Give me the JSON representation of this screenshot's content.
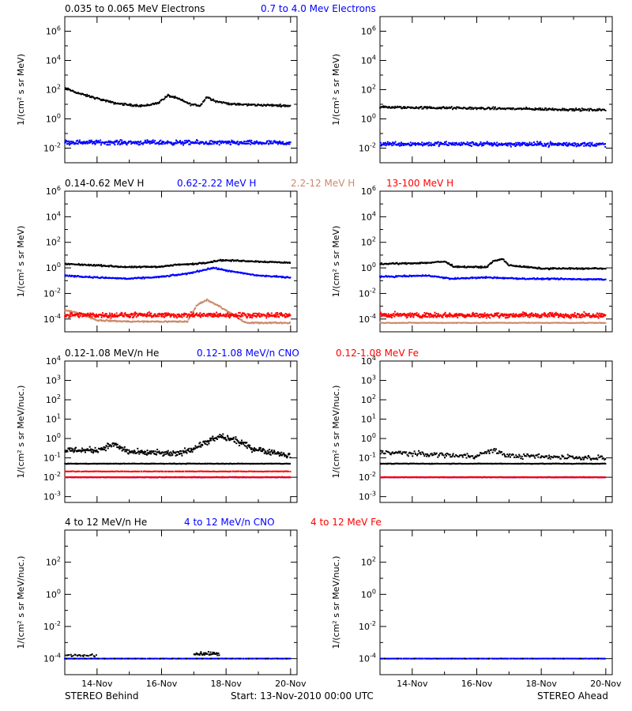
{
  "footer": {
    "left": "STEREO Behind",
    "center": "Start: 13-Nov-2010 00:00 UTC",
    "right": "STEREO Ahead"
  },
  "x_ticks": [
    "14-Nov",
    "16-Nov",
    "18-Nov",
    "20-Nov"
  ],
  "colors": {
    "black": "#000000",
    "blue": "#0000ff",
    "tan": "#cd8a6a",
    "red": "#ff0000"
  },
  "chart_data": [
    {
      "type": "scatter",
      "row": 0,
      "legend": [
        {
          "label": "0.035 to 0.065 MeV Electrons",
          "color": "#000000"
        },
        {
          "label": "0.7 to 4.0 Mev Electrons",
          "color": "#0000ff"
        }
      ],
      "ylabel": "1/(cm² s sr MeV)",
      "ylog_range": [
        -3,
        7
      ],
      "yticks": [
        -2,
        0,
        2,
        4,
        6
      ],
      "x_range_days": [
        13,
        20.2
      ],
      "behind": [
        {
          "color": "#000000",
          "pts": [
            [
              13.0,
              2.1
            ],
            [
              13.5,
              1.7
            ],
            [
              14.0,
              1.4
            ],
            [
              14.5,
              1.1
            ],
            [
              15.0,
              0.95
            ],
            [
              15.5,
              0.9
            ],
            [
              15.9,
              1.1
            ],
            [
              16.2,
              1.6
            ],
            [
              16.5,
              1.4
            ],
            [
              16.9,
              1.0
            ],
            [
              17.2,
              0.9
            ],
            [
              17.4,
              1.5
            ],
            [
              17.7,
              1.2
            ],
            [
              18.2,
              1.0
            ],
            [
              19.0,
              0.95
            ],
            [
              20.0,
              0.9
            ]
          ],
          "noise": 0.1,
          "count": 300
        },
        {
          "color": "#0000ff",
          "pts": [
            [
              13.0,
              -1.6
            ],
            [
              20.0,
              -1.65
            ]
          ],
          "noise": 0.22,
          "count": 420
        }
      ],
      "ahead": [
        {
          "color": "#000000",
          "pts": [
            [
              13.0,
              0.8
            ],
            [
              15.0,
              0.75
            ],
            [
              17.0,
              0.7
            ],
            [
              20.0,
              0.6
            ]
          ],
          "noise": 0.12,
          "count": 300
        },
        {
          "color": "#0000ff",
          "pts": [
            [
              13.0,
              -1.7
            ],
            [
              20.0,
              -1.75
            ]
          ],
          "noise": 0.22,
          "count": 420
        }
      ]
    },
    {
      "type": "scatter",
      "row": 1,
      "legend": [
        {
          "label": "0.14-0.62 MeV H",
          "color": "#000000"
        },
        {
          "label": "0.62-2.22 MeV H",
          "color": "#0000ff"
        },
        {
          "label": "2.2-12 MeV H",
          "color": "#cd8a6a"
        },
        {
          "label": "13-100 MeV H",
          "color": "#ff0000"
        }
      ],
      "ylabel": "1/(cm² s sr MeV)",
      "ylog_range": [
        -5,
        6
      ],
      "yticks": [
        -4,
        -2,
        0,
        2,
        4,
        6
      ],
      "x_range_days": [
        13,
        20.2
      ],
      "behind": [
        {
          "color": "#000000",
          "pts": [
            [
              13.0,
              0.3
            ],
            [
              14.0,
              0.2
            ],
            [
              15.0,
              0.05
            ],
            [
              16.0,
              0.1
            ],
            [
              16.5,
              0.25
            ],
            [
              17.0,
              0.3
            ],
            [
              17.5,
              0.45
            ],
            [
              17.8,
              0.6
            ],
            [
              18.5,
              0.55
            ],
            [
              19.0,
              0.5
            ],
            [
              20.0,
              0.4
            ]
          ],
          "noise": 0.08,
          "count": 320
        },
        {
          "color": "#0000ff",
          "pts": [
            [
              13.0,
              -0.6
            ],
            [
              14.0,
              -0.75
            ],
            [
              15.0,
              -0.85
            ],
            [
              16.0,
              -0.7
            ],
            [
              16.8,
              -0.45
            ],
            [
              17.6,
              0.0
            ],
            [
              18.2,
              -0.3
            ],
            [
              19.0,
              -0.6
            ],
            [
              20.0,
              -0.75
            ]
          ],
          "noise": 0.08,
          "count": 320
        },
        {
          "color": "#cd8a6a",
          "pts": [
            [
              13.0,
              -3.3
            ],
            [
              13.5,
              -3.6
            ],
            [
              14.0,
              -4.1
            ],
            [
              15.0,
              -4.2
            ],
            [
              16.8,
              -4.2
            ],
            [
              17.1,
              -2.9
            ],
            [
              17.4,
              -2.5
            ],
            [
              17.8,
              -3.0
            ],
            [
              18.3,
              -3.8
            ],
            [
              18.6,
              -4.3
            ],
            [
              20.0,
              -4.3
            ]
          ],
          "noise": 0.08,
          "count": 320
        },
        {
          "color": "#ff0000",
          "pts": [
            [
              13.0,
              -3.7
            ],
            [
              20.0,
              -3.7
            ]
          ],
          "noise": 0.28,
          "count": 520
        }
      ],
      "ahead": [
        {
          "color": "#000000",
          "pts": [
            [
              13.0,
              0.3
            ],
            [
              14.5,
              0.4
            ],
            [
              15.0,
              0.5
            ],
            [
              15.3,
              0.1
            ],
            [
              16.3,
              0.05
            ],
            [
              16.5,
              0.5
            ],
            [
              16.8,
              0.7
            ],
            [
              17.0,
              0.2
            ],
            [
              18.0,
              -0.05
            ],
            [
              20.0,
              -0.05
            ]
          ],
          "noise": 0.08,
          "count": 320
        },
        {
          "color": "#0000ff",
          "pts": [
            [
              13.0,
              -0.7
            ],
            [
              14.5,
              -0.6
            ],
            [
              15.2,
              -0.85
            ],
            [
              16.3,
              -0.75
            ],
            [
              17.5,
              -0.85
            ],
            [
              20.0,
              -0.9
            ]
          ],
          "noise": 0.08,
          "count": 320
        },
        {
          "color": "#cd8a6a",
          "pts": [
            [
              13.0,
              -4.3
            ],
            [
              20.0,
              -4.3
            ]
          ],
          "noise": 0.04,
          "count": 260
        },
        {
          "color": "#ff0000",
          "pts": [
            [
              13.0,
              -3.7
            ],
            [
              20.0,
              -3.7
            ]
          ],
          "noise": 0.28,
          "count": 520
        }
      ]
    },
    {
      "type": "scatter",
      "row": 2,
      "legend": [
        {
          "label": "0.12-1.08 MeV/n He",
          "color": "#000000"
        },
        {
          "label": "0.12-1.08 MeV/n CNO",
          "color": "#0000ff"
        },
        {
          "label": "0.12-1.08 MeV Fe",
          "color": "#ff0000"
        }
      ],
      "ylabel": "1/(cm² s sr MeV/nuc.)",
      "ylog_range": [
        -3.3,
        4
      ],
      "yticks": [
        -3,
        -2,
        -1,
        0,
        1,
        2,
        3,
        4
      ],
      "x_range_days": [
        13,
        20.2
      ],
      "behind": [
        {
          "color": "#000000",
          "pts": [
            [
              13.0,
              -0.6
            ],
            [
              14.0,
              -0.6
            ],
            [
              14.5,
              -0.3
            ],
            [
              15.0,
              -0.7
            ],
            [
              16.5,
              -0.8
            ],
            [
              17.0,
              -0.5
            ],
            [
              17.8,
              0.1
            ],
            [
              18.3,
              -0.1
            ],
            [
              18.8,
              -0.5
            ],
            [
              20.0,
              -0.9
            ]
          ],
          "noise": 0.22,
          "count": 420
        },
        {
          "color": "#000000",
          "pts": [
            [
              13.0,
              -1.3
            ],
            [
              20.0,
              -1.3
            ]
          ],
          "noise": 0.02,
          "count": 300
        },
        {
          "color": "#0000ff",
          "pts": [
            [
              13.0,
              -2.0
            ],
            [
              20.0,
              -2.0
            ]
          ],
          "noise": 0.02,
          "count": 260
        },
        {
          "color": "#ff0000",
          "pts": [
            [
              13.0,
              -1.7
            ],
            [
              20.0,
              -1.7
            ]
          ],
          "noise": 0.02,
          "count": 200
        },
        {
          "color": "#ff0000",
          "pts": [
            [
              13.0,
              -2.0
            ],
            [
              20.0,
              -2.0
            ]
          ],
          "noise": 0.02,
          "count": 300
        }
      ],
      "ahead": [
        {
          "color": "#000000",
          "pts": [
            [
              13.0,
              -0.7
            ],
            [
              15.0,
              -0.85
            ],
            [
              16.0,
              -0.9
            ],
            [
              16.5,
              -0.6
            ],
            [
              17.0,
              -0.9
            ],
            [
              20.0,
              -1.0
            ]
          ],
          "noise": 0.18,
          "count": 260
        },
        {
          "color": "#000000",
          "pts": [
            [
              13.0,
              -1.3
            ],
            [
              20.0,
              -1.3
            ]
          ],
          "noise": 0.02,
          "count": 300
        },
        {
          "color": "#0000ff",
          "pts": [
            [
              13.0,
              -2.0
            ],
            [
              20.0,
              -2.0
            ]
          ],
          "noise": 0.02,
          "count": 260
        },
        {
          "color": "#ff0000",
          "pts": [
            [
              13.0,
              -2.0
            ],
            [
              20.0,
              -2.0
            ]
          ],
          "noise": 0.02,
          "count": 300
        }
      ]
    },
    {
      "type": "scatter",
      "row": 3,
      "legend": [
        {
          "label": "4 to 12 MeV/n He",
          "color": "#000000"
        },
        {
          "label": "4 to 12 MeV/n CNO",
          "color": "#0000ff"
        },
        {
          "label": "4 to 12 MeV Fe",
          "color": "#ff0000"
        }
      ],
      "ylabel": "1/(cm² s sr MeV/nuc.)",
      "ylog_range": [
        -5,
        4
      ],
      "yticks": [
        -4,
        -2,
        0,
        2
      ],
      "x_range_days": [
        13,
        20.2
      ],
      "behind": [
        {
          "color": "#0000ff",
          "pts": [
            [
              13.0,
              -4.0
            ],
            [
              20.0,
              -4.0
            ]
          ],
          "noise": 0.01,
          "count": 220
        },
        {
          "color": "#000000",
          "pts": [
            [
              13.0,
              -3.8
            ],
            [
              14.0,
              -3.8
            ]
          ],
          "noise": 0.1,
          "count": 25
        },
        {
          "color": "#000000",
          "pts": [
            [
              17.0,
              -3.7
            ],
            [
              17.8,
              -3.7
            ]
          ],
          "noise": 0.15,
          "count": 40
        },
        {
          "color": "#000000",
          "pts": [
            [
              13.0,
              -4.0
            ],
            [
              20.0,
              -4.0
            ]
          ],
          "noise": 0.0,
          "count": 30
        }
      ],
      "ahead": [
        {
          "color": "#0000ff",
          "pts": [
            [
              13.0,
              -4.0
            ],
            [
              20.0,
              -4.0
            ]
          ],
          "noise": 0.01,
          "count": 220
        },
        {
          "color": "#000000",
          "pts": [
            [
              13.0,
              -4.0
            ],
            [
              20.0,
              -4.0
            ]
          ],
          "noise": 0.0,
          "count": 15
        }
      ]
    }
  ]
}
